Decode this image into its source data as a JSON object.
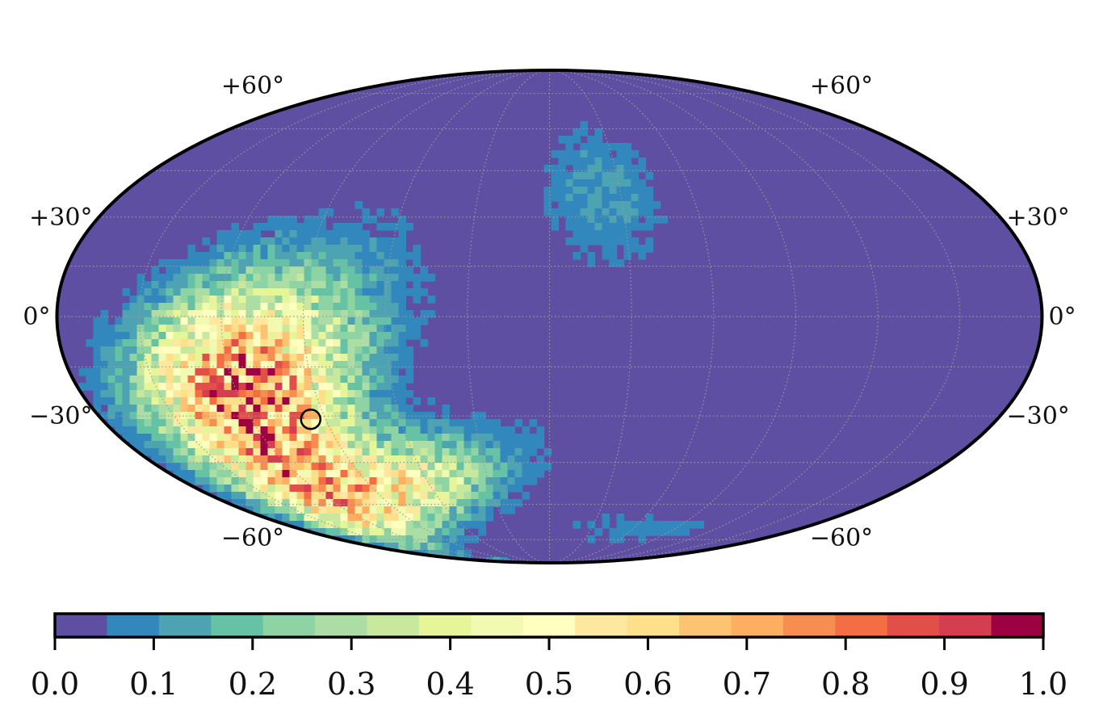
{
  "chart_data": {
    "type": "heatmap",
    "projection": "mollweide",
    "title": "",
    "lat_labels_left": [
      "+60°",
      "+30°",
      "0°",
      "−30°",
      "−60°"
    ],
    "lat_labels_right": [
      "+60°",
      "+30°",
      "0°",
      "−30°",
      "−60°"
    ],
    "lat_values": [
      60,
      30,
      0,
      -30,
      -60
    ],
    "graticule": {
      "lat_step_deg": 15,
      "lon_step_deg": 30,
      "style": "dotted gray"
    },
    "blobs": [
      {
        "lon": -112,
        "lat": -33,
        "sx": 36,
        "sy": 18,
        "rot": 42,
        "peak": 0.62
      },
      {
        "lon": -130,
        "lat": -15,
        "sx": 26,
        "sy": 16,
        "rot": 35,
        "peak": 0.42
      },
      {
        "lon": -80,
        "lat": -55,
        "sx": 38,
        "sy": 10,
        "rot": 10,
        "peak": 0.5
      },
      {
        "lon": 22,
        "lat": 38,
        "sx": 18,
        "sy": 16,
        "rot": 0,
        "peak": 0.12
      },
      {
        "lon": 60,
        "lat": -70,
        "sx": 40,
        "sy": 5,
        "rot": 0,
        "peak": 0.08
      }
    ],
    "marker": {
      "lon": -96,
      "lat": -31,
      "shape": "open circle"
    },
    "colorbar": {
      "orientation": "horizontal",
      "vmin": 0.0,
      "vmax": 1.0,
      "n_levels": 19,
      "colormap": "Spectral_r",
      "ticks": [
        0.0,
        0.1,
        0.2,
        0.3,
        0.4,
        0.5,
        0.6,
        0.7,
        0.8,
        0.9,
        1.0
      ],
      "tick_labels": [
        "0.0",
        "0.1",
        "0.2",
        "0.3",
        "0.4",
        "0.5",
        "0.6",
        "0.7",
        "0.8",
        "0.9",
        "1.0"
      ],
      "colors": [
        "#5e4fa2",
        "#3288bd",
        "#4ea3b3",
        "#66c2a5",
        "#8dd3a4",
        "#abdda4",
        "#c8e89e",
        "#e6f598",
        "#f2f9b0",
        "#ffffbf",
        "#fee8a0",
        "#fee08b",
        "#fdc372",
        "#fdae61",
        "#f88d52",
        "#f46d43",
        "#e24f49",
        "#d53e4f",
        "#9e0142"
      ]
    }
  }
}
